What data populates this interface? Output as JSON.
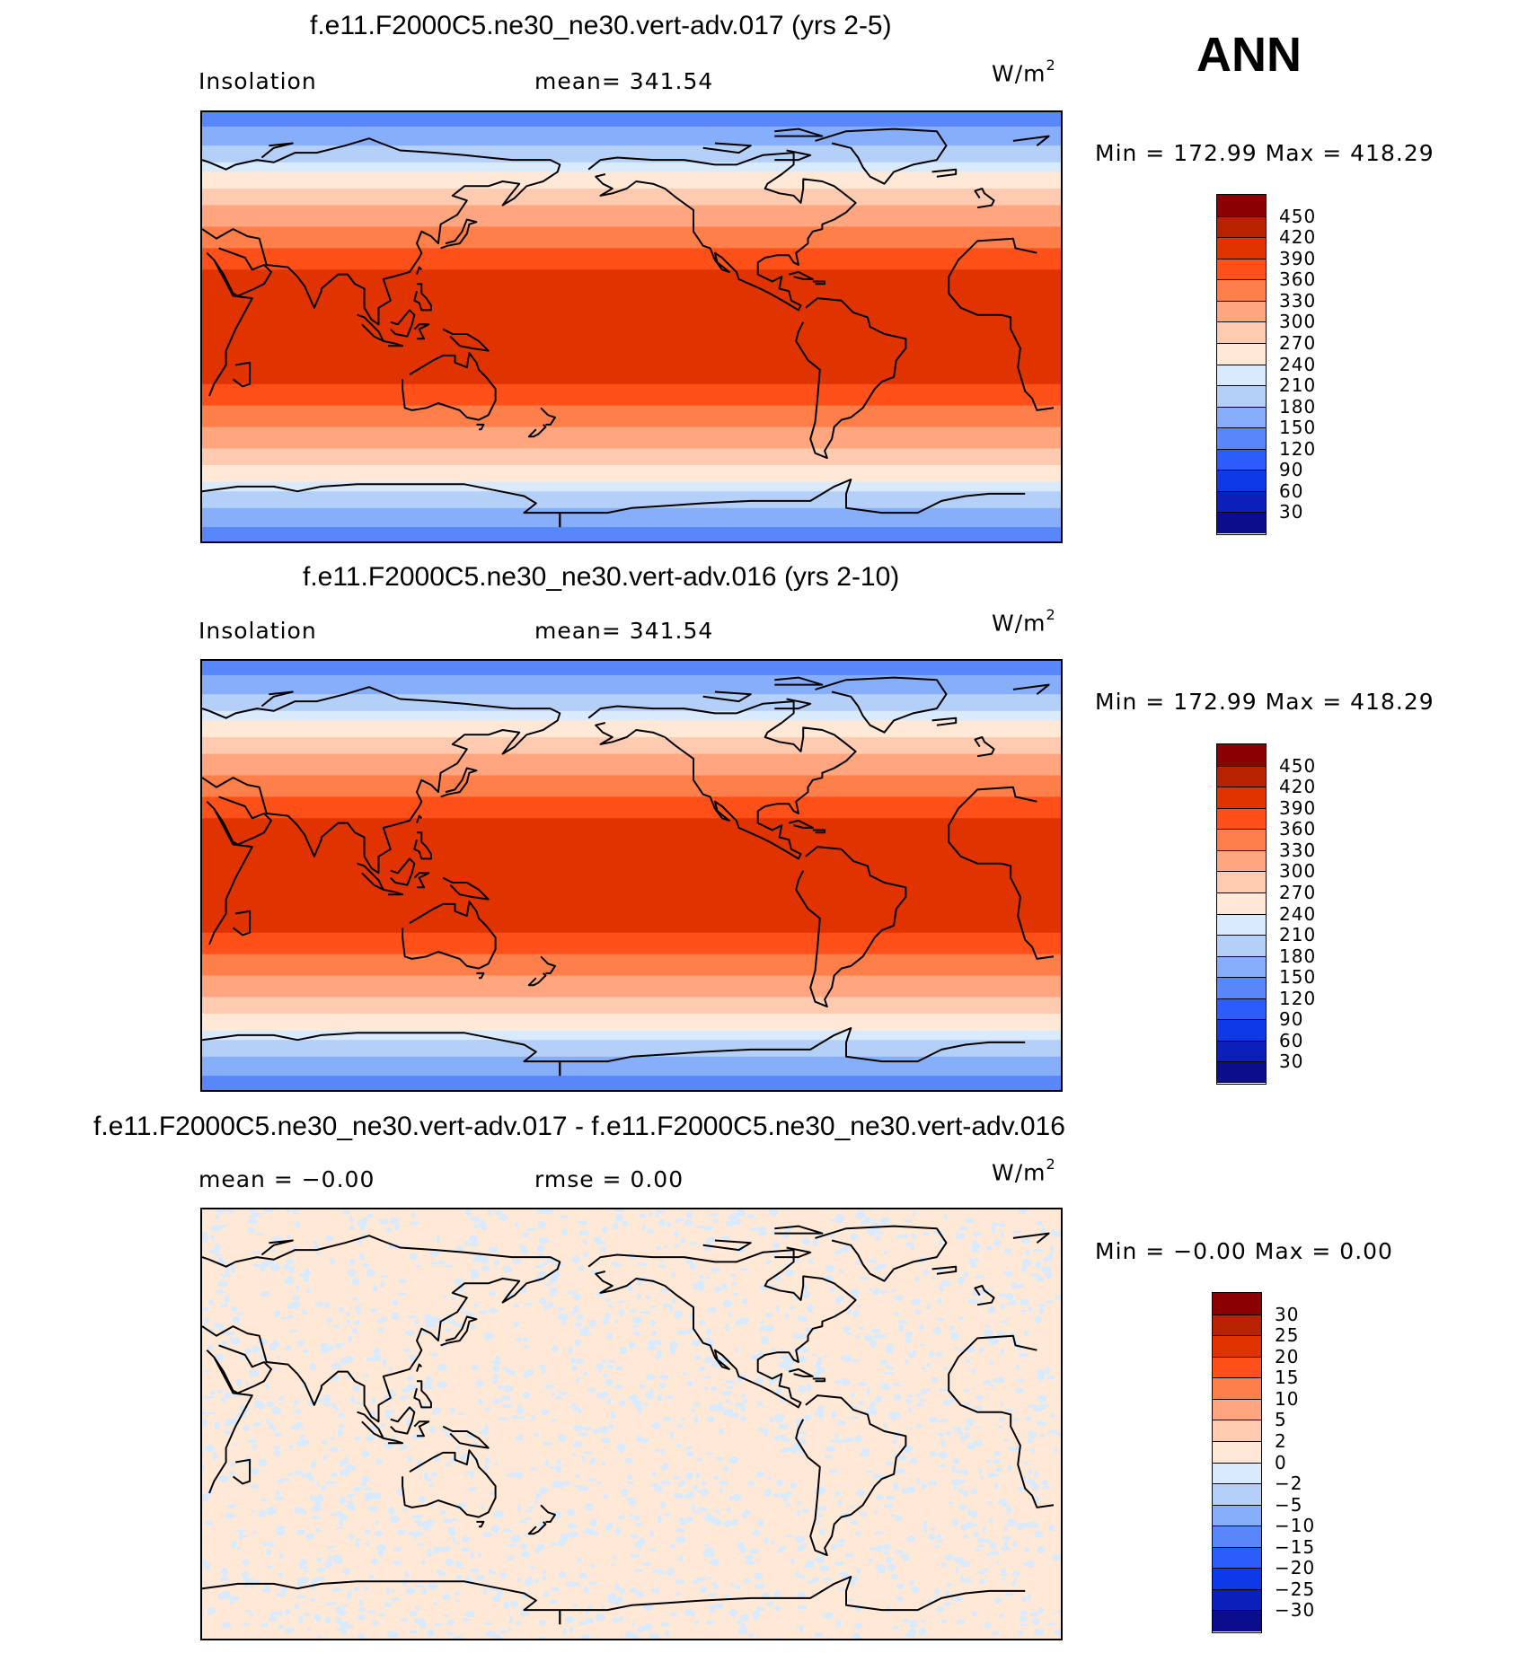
{
  "season": "ANN",
  "panels": [
    {
      "title": "f.e11.F2000C5.ne30_ne30.vert-adv.017 (yrs 2-5)",
      "left_label": "Insolation",
      "stat_label": "mean= 341.54",
      "units": "W/m",
      "units_sup": "2",
      "minmax": "Min =  172.99  Max =  418.29",
      "colorbar_labels": [
        "450",
        "420",
        "390",
        "360",
        "330",
        "300",
        "270",
        "240",
        "210",
        "180",
        "150",
        "120",
        "90",
        "60",
        "30"
      ]
    },
    {
      "title": "f.e11.F2000C5.ne30_ne30.vert-adv.016 (yrs 2-10)",
      "left_label": "Insolation",
      "stat_label": "mean= 341.54",
      "units": "W/m",
      "units_sup": "2",
      "minmax": "Min =  172.99  Max =  418.29",
      "colorbar_labels": [
        "450",
        "420",
        "390",
        "360",
        "330",
        "300",
        "270",
        "240",
        "210",
        "180",
        "150",
        "120",
        "90",
        "60",
        "30"
      ]
    },
    {
      "title": "f.e11.F2000C5.ne30_ne30.vert-adv.017 - f.e11.F2000C5.ne30_ne30.vert-adv.016",
      "left_label": "mean =   −0.00",
      "stat_label": "rmse =     0.00",
      "units": "W/m",
      "units_sup": "2",
      "minmax": "Min =    −0.00  Max =     0.00",
      "colorbar_labels": [
        "30",
        "25",
        "20",
        "15",
        "10",
        "5",
        "2",
        "0",
        "−2",
        "−5",
        "−10",
        "−15",
        "−20",
        "−25",
        "−30"
      ]
    }
  ],
  "colors": {
    "abs_scale": [
      "#8b0000",
      "#b82200",
      "#e03300",
      "#ff5019",
      "#ff7f4a",
      "#ffa57f",
      "#ffcbb0",
      "#ffe9d6",
      "#d8eafc",
      "#b4d0f8",
      "#86aefa",
      "#5887fb",
      "#2c5dfa",
      "#0e39e8",
      "#0b1fbb",
      "#0c0d8c"
    ],
    "diff_scale": [
      "#8b0000",
      "#b82200",
      "#e03300",
      "#ff5019",
      "#ff7f4a",
      "#ffa57f",
      "#ffcbb0",
      "#ffe9d6",
      "#d8eafc",
      "#b4d0f8",
      "#86aefa",
      "#5887fb",
      "#2c5dfa",
      "#0e39e8",
      "#0b1fbb",
      "#0c0d8c"
    ],
    "diff_background": "#ffe9d6",
    "diff_speckle": "#d8eafc"
  },
  "map_bands": [
    {
      "lat_top": 90,
      "lat_bot": 84,
      "color_index": 11
    },
    {
      "lat_top": 84,
      "lat_bot": 76,
      "color_index": 10
    },
    {
      "lat_top": 76,
      "lat_bot": 69,
      "color_index": 9
    },
    {
      "lat_top": 69,
      "lat_bot": 65,
      "color_index": 8
    },
    {
      "lat_top": 65,
      "lat_bot": 58,
      "color_index": 7
    },
    {
      "lat_top": 58,
      "lat_bot": 51,
      "color_index": 6
    },
    {
      "lat_top": 51,
      "lat_bot": 42,
      "color_index": 5
    },
    {
      "lat_top": 42,
      "lat_bot": 33,
      "color_index": 4
    },
    {
      "lat_top": 33,
      "lat_bot": 24,
      "color_index": 3
    },
    {
      "lat_top": 24,
      "lat_bot": -24,
      "color_index": 2
    },
    {
      "lat_top": -24,
      "lat_bot": -33,
      "color_index": 3
    },
    {
      "lat_top": -33,
      "lat_bot": -42,
      "color_index": 4
    },
    {
      "lat_top": -42,
      "lat_bot": -51,
      "color_index": 5
    },
    {
      "lat_top": -51,
      "lat_bot": -58,
      "color_index": 6
    },
    {
      "lat_top": -58,
      "lat_bot": -65,
      "color_index": 7
    },
    {
      "lat_top": -65,
      "lat_bot": -69,
      "color_index": 8
    },
    {
      "lat_top": -69,
      "lat_bot": -76,
      "color_index": 9
    },
    {
      "lat_top": -76,
      "lat_bot": -84,
      "color_index": 10
    },
    {
      "lat_top": -84,
      "lat_bot": -90,
      "color_index": 11
    }
  ]
}
